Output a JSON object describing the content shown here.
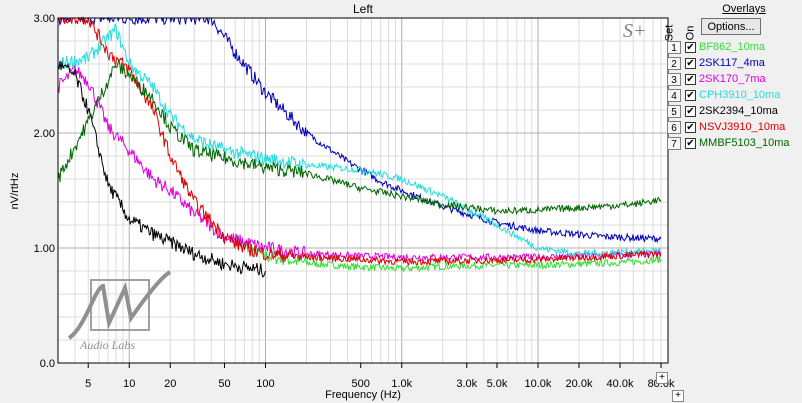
{
  "chart_data": {
    "type": "line",
    "title": "Left",
    "xlabel": "Frequency (Hz)",
    "ylabel": "nV/rtHz",
    "x_scale": "log",
    "xlim": [
      3,
      90000
    ],
    "ylim": [
      0,
      3
    ],
    "grid": true,
    "y_ticks": [
      "0.0",
      "1.00",
      "2.00",
      "3.00"
    ],
    "x_ticks": [
      {
        "v": 5,
        "label": "5"
      },
      {
        "v": 10,
        "label": "10"
      },
      {
        "v": 20,
        "label": "20"
      },
      {
        "v": 50,
        "label": "50"
      },
      {
        "v": 100,
        "label": "100"
      },
      {
        "v": 500,
        "label": "500"
      },
      {
        "v": 1000,
        "label": "1.0k"
      },
      {
        "v": 3000,
        "label": "3.0k"
      },
      {
        "v": 5000,
        "label": "5.0k"
      },
      {
        "v": 10000,
        "label": "10.0k"
      },
      {
        "v": 20000,
        "label": "20.0k"
      },
      {
        "v": 40000,
        "label": "40.0k"
      },
      {
        "v": 80000,
        "label": "80.0k"
      }
    ],
    "series": [
      {
        "name": "BF862_10ma",
        "color": "#33dd33",
        "x": [
          60,
          100,
          200,
          400,
          1000,
          2000,
          5000,
          10000,
          20000,
          50000,
          80000
        ],
        "y": [
          1.05,
          0.93,
          0.87,
          0.84,
          0.82,
          0.84,
          0.85,
          0.85,
          0.86,
          0.88,
          0.9
        ]
      },
      {
        "name": "2SK117_4ma",
        "color": "#0000bb",
        "x": [
          3,
          30,
          40,
          60,
          100,
          200,
          400,
          700,
          1000,
          2000,
          5000,
          10000,
          30000,
          80000
        ],
        "y": [
          3.0,
          3.0,
          3.0,
          2.7,
          2.35,
          2.0,
          1.75,
          1.58,
          1.5,
          1.36,
          1.22,
          1.15,
          1.1,
          1.08
        ]
      },
      {
        "name": "2SK170_7ma",
        "color": "#dd00dd",
        "x": [
          3,
          4,
          5,
          7,
          10,
          15,
          20,
          30,
          50,
          100,
          200,
          500,
          1000,
          10000,
          80000
        ],
        "y": [
          2.4,
          2.55,
          2.45,
          2.05,
          1.85,
          1.6,
          1.5,
          1.3,
          1.1,
          1.0,
          0.95,
          0.93,
          0.92,
          0.92,
          0.95
        ]
      },
      {
        "name": "CPH3910_10ma",
        "color": "#22dddd",
        "x": [
          3,
          5,
          8,
          10,
          15,
          20,
          30,
          50,
          100,
          200,
          500,
          1000,
          2000,
          5000,
          10000,
          20000,
          50000,
          80000
        ],
        "y": [
          2.6,
          2.65,
          2.9,
          2.6,
          2.4,
          2.15,
          1.95,
          1.85,
          1.78,
          1.72,
          1.68,
          1.6,
          1.45,
          1.2,
          1.0,
          0.95,
          0.97,
          0.98
        ]
      },
      {
        "name": "2SK2394_10ma",
        "color": "#000000",
        "x": [
          3,
          4,
          5,
          7,
          10,
          15,
          20,
          30,
          50,
          80,
          100
        ],
        "y": [
          2.6,
          2.5,
          2.2,
          1.55,
          1.25,
          1.12,
          1.05,
          0.95,
          0.86,
          0.82,
          0.8
        ]
      },
      {
        "name": "NSVJ3910_10ma",
        "color": "#dd0000",
        "x": [
          3,
          5,
          7,
          10,
          15,
          20,
          30,
          50,
          70,
          100,
          200,
          500,
          1000,
          10000,
          80000
        ],
        "y": [
          3.0,
          3.0,
          2.7,
          2.55,
          2.2,
          1.8,
          1.4,
          1.1,
          1.0,
          0.95,
          0.92,
          0.9,
          0.88,
          0.9,
          0.95
        ]
      },
      {
        "name": "MMBF5103_10ma",
        "color": "#006600",
        "x": [
          3,
          5,
          8,
          10,
          15,
          20,
          30,
          50,
          100,
          200,
          500,
          1000,
          2000,
          5000,
          10000,
          20000,
          50000,
          80000
        ],
        "y": [
          1.6,
          2.1,
          2.6,
          2.5,
          2.3,
          2.05,
          1.85,
          1.78,
          1.7,
          1.65,
          1.52,
          1.45,
          1.38,
          1.32,
          1.33,
          1.35,
          1.38,
          1.42
        ]
      }
    ]
  },
  "overlays": {
    "title": "Overlays",
    "set_label": "Set",
    "on_label": "On",
    "options_label": "Options...",
    "items": [
      {
        "num": "1",
        "name": "BF862_10ma",
        "color": "#33dd33"
      },
      {
        "num": "2",
        "name": "2SK117_4ma",
        "color": "#0000bb"
      },
      {
        "num": "3",
        "name": "2SK170_7ma",
        "color": "#dd00dd"
      },
      {
        "num": "4",
        "name": "CPH3910_10ma",
        "color": "#22dddd"
      },
      {
        "num": "5",
        "name": "2SK2394_10ma",
        "color": "#000000"
      },
      {
        "num": "6",
        "name": "NSVJ3910_10ma",
        "color": "#dd0000"
      },
      {
        "num": "7",
        "name": "MMBF5103_10ma",
        "color": "#006600"
      }
    ]
  },
  "logo": {
    "text": "Audio Labs"
  },
  "watermark": {
    "text": "S+"
  },
  "check_mark": "✔"
}
